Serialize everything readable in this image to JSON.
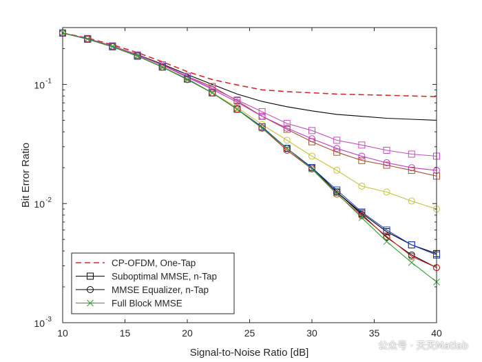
{
  "chart_data": {
    "type": "line",
    "xlabel": "Signal-to-Noise Ratio [dB]",
    "ylabel": "Bit Error Ratio",
    "xlim": [
      10,
      40
    ],
    "ylim": [
      0.001,
      0.3
    ],
    "yscale": "log",
    "grid": false,
    "legend_position": "bottom-left",
    "x_ticks": [
      10,
      15,
      20,
      25,
      30,
      35,
      40
    ],
    "y_ticks": [
      {
        "value": 0.001,
        "base": "10",
        "exp": "-3"
      },
      {
        "value": 0.01,
        "base": "10",
        "exp": "-2"
      },
      {
        "value": 0.1,
        "base": "10",
        "exp": "-1"
      }
    ],
    "x": [
      10,
      12,
      14,
      16,
      18,
      20,
      22,
      24,
      26,
      28,
      30,
      32,
      34,
      36,
      38,
      40
    ],
    "legend": [
      {
        "label": "CP-OFDM, One-Tap",
        "color": "#d62728",
        "dash": "dashed",
        "marker": "none"
      },
      {
        "label": "Suboptimal MMSE, n-Tap",
        "color": "#000000",
        "dash": "solid",
        "marker": "square"
      },
      {
        "label": "MMSE Equalizer, n-Tap",
        "color": "#000000",
        "dash": "solid",
        "marker": "circle"
      },
      {
        "label": "Full Block MMSE",
        "color": "#2ca02c",
        "dash": "solid",
        "marker": "x"
      }
    ],
    "series": [
      {
        "color": "#d62728",
        "dash": "dashed",
        "marker": "none",
        "values": [
          0.27,
          0.245,
          0.215,
          0.185,
          0.155,
          0.128,
          0.11,
          0.099,
          0.09,
          0.087,
          0.085,
          0.083,
          0.082,
          0.081,
          0.08,
          0.079
        ]
      },
      {
        "color": "#000000",
        "dash": "solid",
        "marker": "none",
        "values": [
          0.27,
          0.242,
          0.21,
          0.178,
          0.148,
          0.121,
          0.1,
          0.083,
          0.072,
          0.065,
          0.06,
          0.056,
          0.054,
          0.052,
          0.051,
          0.05
        ]
      },
      {
        "color": "#a0522d",
        "dash": "solid",
        "marker": "square",
        "values": [
          0.27,
          0.242,
          0.21,
          0.176,
          0.146,
          0.117,
          0.096,
          0.073,
          0.054,
          0.042,
          0.033,
          0.027,
          0.023,
          0.021,
          0.019,
          0.017
        ]
      },
      {
        "color": "#c039c0",
        "dash": "solid",
        "marker": "circle",
        "values": [
          0.27,
          0.242,
          0.21,
          0.176,
          0.145,
          0.115,
          0.091,
          0.071,
          0.054,
          0.043,
          0.035,
          0.029,
          0.025,
          0.022,
          0.02,
          0.019
        ]
      },
      {
        "color": "#c04ec0",
        "dash": "solid",
        "marker": "square",
        "values": [
          0.27,
          0.243,
          0.211,
          0.177,
          0.146,
          0.117,
          0.093,
          0.074,
          0.059,
          0.047,
          0.041,
          0.034,
          0.031,
          0.028,
          0.026,
          0.025
        ]
      },
      {
        "color": "#c8c040",
        "dash": "solid",
        "marker": "circle",
        "values": [
          0.27,
          0.24,
          0.208,
          0.174,
          0.141,
          0.111,
          0.085,
          0.064,
          0.046,
          0.034,
          0.025,
          0.019,
          0.014,
          0.0125,
          0.0105,
          0.009
        ]
      },
      {
        "color": "#000000",
        "dash": "solid",
        "marker": "square",
        "values": [
          0.27,
          0.24,
          0.207,
          0.173,
          0.14,
          0.111,
          0.085,
          0.062,
          0.044,
          0.029,
          0.02,
          0.0125,
          0.0083,
          0.0058,
          0.0045,
          0.0038
        ]
      },
      {
        "color": "#000000",
        "dash": "solid",
        "marker": "circle",
        "values": [
          0.27,
          0.24,
          0.207,
          0.173,
          0.14,
          0.11,
          0.085,
          0.062,
          0.043,
          0.029,
          0.02,
          0.0125,
          0.0081,
          0.0052,
          0.0037,
          0.0029
        ]
      },
      {
        "color": "#1f3fbf",
        "dash": "solid",
        "marker": "square",
        "values": [
          0.27,
          0.24,
          0.207,
          0.173,
          0.14,
          0.111,
          0.085,
          0.062,
          0.044,
          0.029,
          0.02,
          0.013,
          0.0085,
          0.006,
          0.0045,
          0.0037
        ]
      },
      {
        "color": "#d62728",
        "dash": "solid",
        "marker": "circle",
        "values": [
          0.27,
          0.24,
          0.207,
          0.173,
          0.14,
          0.11,
          0.085,
          0.062,
          0.043,
          0.028,
          0.0195,
          0.012,
          0.0079,
          0.0053,
          0.0036,
          0.0029
        ]
      },
      {
        "color": "#2ca02c",
        "dash": "solid",
        "marker": "x",
        "values": [
          0.27,
          0.24,
          0.207,
          0.173,
          0.14,
          0.11,
          0.085,
          0.062,
          0.043,
          0.029,
          0.0195,
          0.0122,
          0.0076,
          0.0048,
          0.0032,
          0.0022
        ]
      }
    ]
  },
  "watermark": "公众号 · 天天Matlab"
}
